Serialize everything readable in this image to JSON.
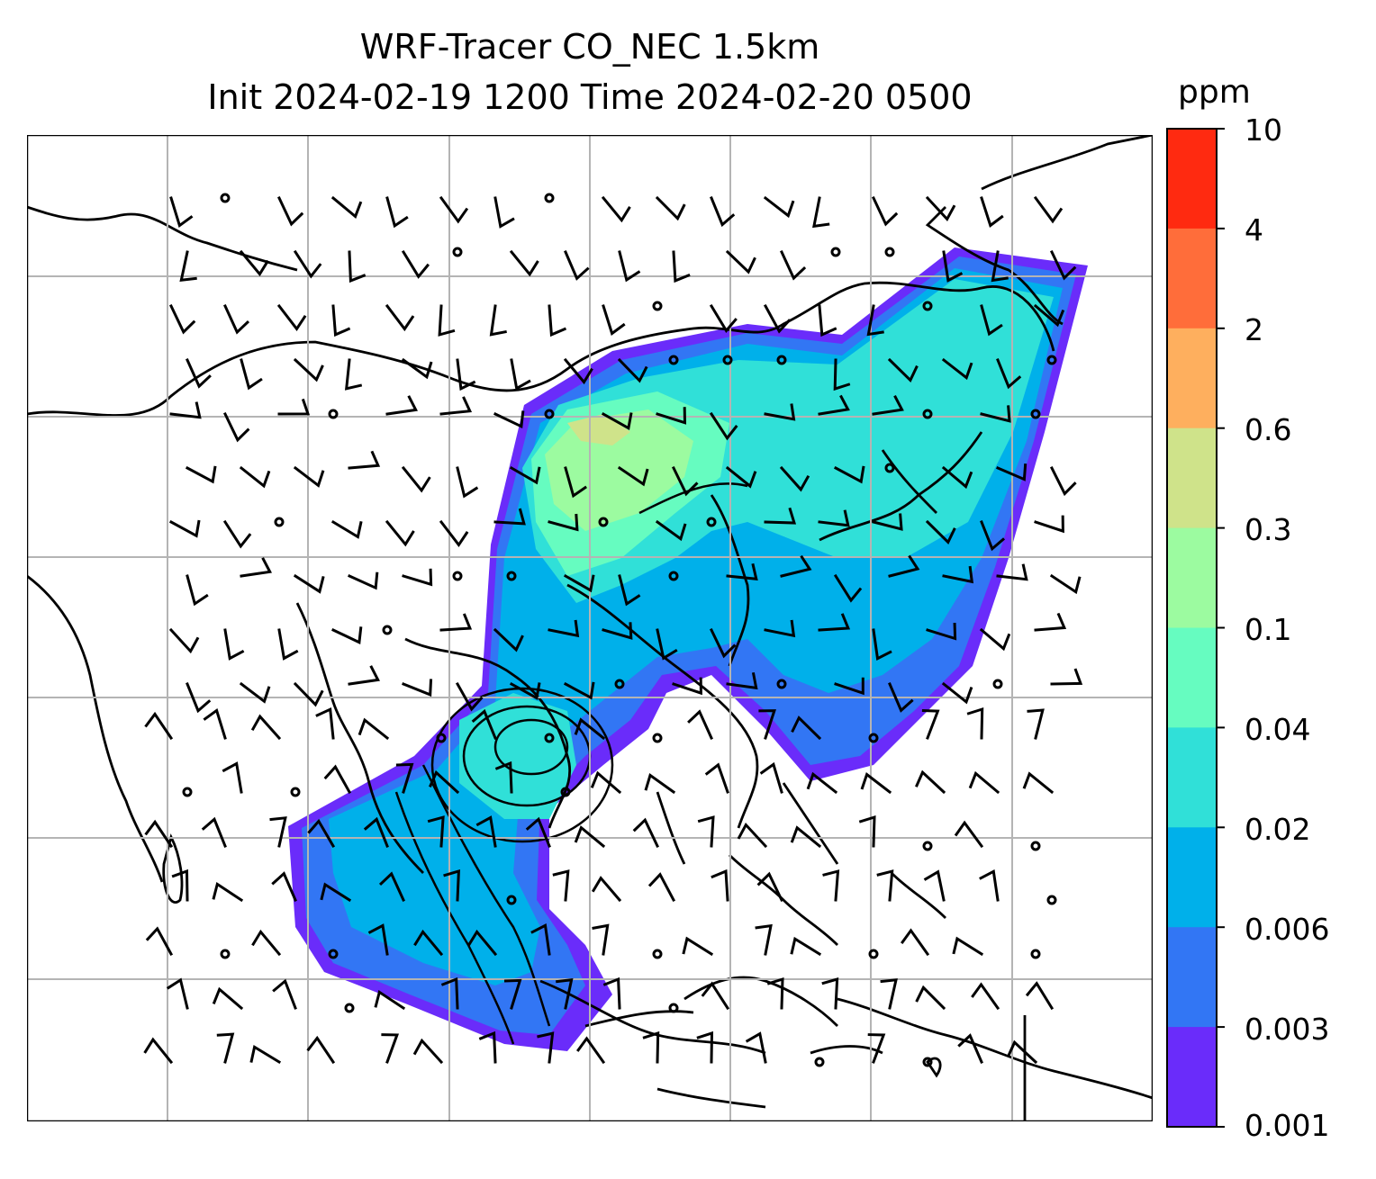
{
  "title": {
    "line1": "WRF-Tracer CO_NEC 1.5km",
    "line2": "Init 2024-02-19 1200 Time 2024-02-20 0500"
  },
  "colorbar": {
    "unit": "ppm",
    "ticks": [
      "10",
      "4",
      "2",
      "0.6",
      "0.3",
      "0.1",
      "0.04",
      "0.02",
      "0.006",
      "0.003",
      "0.001"
    ],
    "colors": [
      "#ff2a10",
      "#ff6d3a",
      "#feaf5e",
      "#cfe38a",
      "#9cfba0",
      "#66fcc0",
      "#30e0d8",
      "#00b0ea",
      "#3276f4",
      "#6a2cfa"
    ]
  },
  "map": {
    "gridlines": true,
    "wind_barbs": true,
    "coastlines": true
  }
}
